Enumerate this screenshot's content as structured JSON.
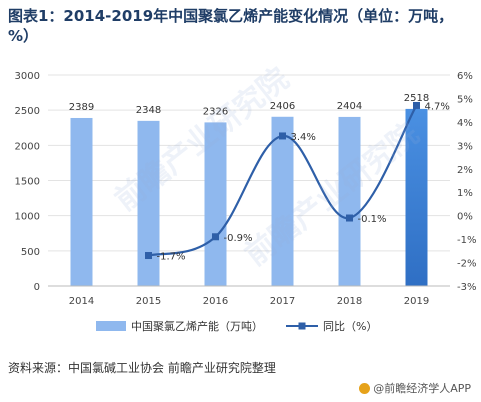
{
  "title": "图表1：2014-2019年中国聚氯乙烯产能变化情况（单位：万吨，%）",
  "source": "资料来源：中国氯碱工业协会 前瞻产业研究院整理",
  "brand": "@前瞻经济学人APP",
  "watermark": "前瞻产业研究院",
  "colors": {
    "bar_light": "#8fb8ee",
    "bar_dark": "#3b82d6",
    "line": "#2e5fa8",
    "title": "#1f3d66"
  },
  "chart_data": {
    "type": "bar",
    "categories": [
      "2014",
      "2015",
      "2016",
      "2017",
      "2018",
      "2019"
    ],
    "series": [
      {
        "name": "中国聚氯乙烯产能（万吨）",
        "type": "bar",
        "axis": "left",
        "values": [
          2389,
          2348,
          2326,
          2406,
          2404,
          2518
        ]
      },
      {
        "name": "同比（%）",
        "type": "line",
        "axis": "right",
        "values": [
          null,
          -1.7,
          -0.9,
          3.4,
          -0.1,
          4.7
        ]
      }
    ],
    "bar_labels": [
      "2389",
      "2348",
      "2326",
      "2406",
      "2404",
      "2518"
    ],
    "line_labels": [
      "",
      "-1.7%",
      "-0.9%",
      "3.4%",
      "-0.1%",
      "4.7%"
    ],
    "y_left": {
      "ylim": [
        0,
        3000
      ],
      "ticks": [
        "0",
        "500",
        "1000",
        "1500",
        "2000",
        "2500",
        "3000"
      ]
    },
    "y_right": {
      "ylim": [
        -3,
        6
      ],
      "ticks": [
        "-3%",
        "-2%",
        "-1%",
        "0%",
        "1%",
        "2%",
        "3%",
        "4%",
        "5%",
        "6%"
      ]
    },
    "legend": [
      "中国聚氯乙烯产能（万吨）",
      "同比（%）"
    ],
    "legend_position": "bottom"
  }
}
